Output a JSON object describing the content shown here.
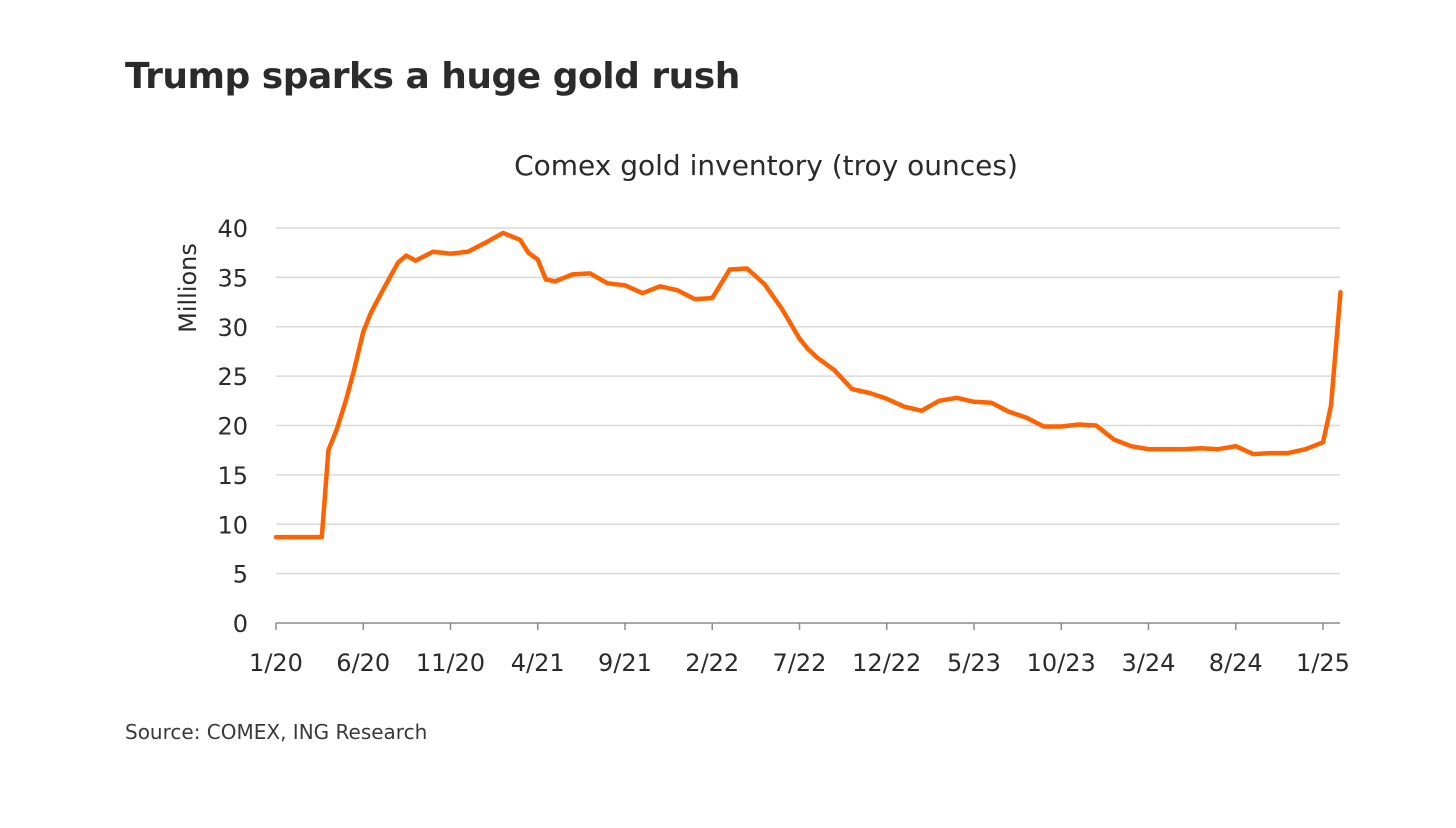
{
  "headline": "Trump sparks a huge gold rush",
  "source": "Source: COMEX, ING Research",
  "colors": {
    "line": "#ff6200",
    "grid": "#d9d9d9",
    "axis": "#8c8c8c",
    "text": "#2b2b2b"
  },
  "chart_data": {
    "type": "line",
    "title": "Comex gold inventory (troy ounces)",
    "ylabel": "Millions",
    "xlabel": "",
    "ylim": [
      0,
      40
    ],
    "yticks": [
      0,
      5,
      10,
      15,
      20,
      25,
      30,
      35,
      40
    ],
    "xlim": [
      "2020-01",
      "2025-02"
    ],
    "xticks": [
      "1/20",
      "6/20",
      "11/20",
      "4/21",
      "9/21",
      "2/22",
      "7/22",
      "12/22",
      "5/23",
      "10/23",
      "3/24",
      "8/24",
      "1/25"
    ],
    "grid": true,
    "legend": "none",
    "series": [
      {
        "x": [
          "2020-01-01",
          "2020-02-01",
          "2020-03-01",
          "2020-03-20",
          "2020-04-01",
          "2020-04-15",
          "2020-05-01",
          "2020-05-15",
          "2020-06-01",
          "2020-06-15",
          "2020-07-01",
          "2020-07-15",
          "2020-08-01",
          "2020-08-15",
          "2020-09-01",
          "2020-10-01",
          "2020-11-01",
          "2020-12-01",
          "2021-01-01",
          "2021-02-01",
          "2021-03-01",
          "2021-03-15",
          "2021-04-01",
          "2021-04-15",
          "2021-05-01",
          "2021-06-01",
          "2021-07-01",
          "2021-08-01",
          "2021-09-01",
          "2021-10-01",
          "2021-11-01",
          "2021-12-01",
          "2022-01-01",
          "2022-02-01",
          "2022-03-01",
          "2022-04-01",
          "2022-05-01",
          "2022-06-01",
          "2022-07-01",
          "2022-07-15",
          "2022-08-01",
          "2022-09-01",
          "2022-10-01",
          "2022-11-01",
          "2022-12-01",
          "2023-01-01",
          "2023-02-01",
          "2023-03-01",
          "2023-04-01",
          "2023-05-01",
          "2023-06-01",
          "2023-07-01",
          "2023-08-01",
          "2023-09-01",
          "2023-10-01",
          "2023-11-01",
          "2023-12-01",
          "2024-01-01",
          "2024-02-01",
          "2024-03-01",
          "2024-04-01",
          "2024-05-01",
          "2024-06-01",
          "2024-07-01",
          "2024-08-01",
          "2024-09-01",
          "2024-10-01",
          "2024-11-01",
          "2024-12-01",
          "2025-01-01",
          "2025-01-15",
          "2025-02-01"
        ],
        "values": [
          8.7,
          8.7,
          8.7,
          8.7,
          17.5,
          19.5,
          22.5,
          25.5,
          29.5,
          31.5,
          33.3,
          34.8,
          36.5,
          37.2,
          36.7,
          37.6,
          37.4,
          37.6,
          38.5,
          39.5,
          38.8,
          37.5,
          36.8,
          34.8,
          34.6,
          35.3,
          35.4,
          34.4,
          34.2,
          33.4,
          34.1,
          33.7,
          32.8,
          32.9,
          35.8,
          35.9,
          34.3,
          31.8,
          28.8,
          27.8,
          26.9,
          25.6,
          23.7,
          23.3,
          22.7,
          21.9,
          21.5,
          22.5,
          22.8,
          22.4,
          22.3,
          21.4,
          20.8,
          19.9,
          19.9,
          20.1,
          20.0,
          18.6,
          17.9,
          17.6,
          17.6,
          17.6,
          17.7,
          17.6,
          17.9,
          17.1,
          17.2,
          17.2,
          17.6,
          18.3,
          22.0,
          33.5
        ]
      }
    ]
  }
}
